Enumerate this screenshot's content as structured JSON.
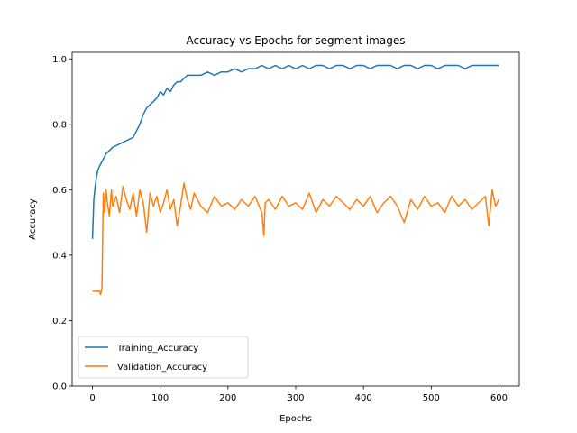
{
  "chart_data": {
    "type": "line",
    "title": "Accuracy vs Epochs for segment images",
    "xlabel": "Epochs",
    "ylabel": "Accuracy",
    "xlim": [
      -30,
      630
    ],
    "ylim": [
      0.0,
      1.02
    ],
    "x_ticks": [
      0,
      100,
      200,
      300,
      400,
      500,
      600
    ],
    "y_ticks": [
      0.0,
      0.2,
      0.4,
      0.6,
      0.8,
      1.0
    ],
    "x_tick_labels": [
      "0",
      "100",
      "200",
      "300",
      "400",
      "500",
      "600"
    ],
    "y_tick_labels": [
      "0.0",
      "0.2",
      "0.4",
      "0.6",
      "0.8",
      "1.0"
    ],
    "grid": false,
    "legend_position": "lower-left",
    "series": [
      {
        "name": "Training_Accuracy",
        "color": "#1f77b4",
        "x": [
          0,
          2,
          4,
          6,
          8,
          10,
          15,
          20,
          25,
          30,
          40,
          50,
          60,
          65,
          70,
          75,
          80,
          85,
          90,
          95,
          100,
          105,
          110,
          115,
          120,
          125,
          130,
          135,
          140,
          150,
          160,
          170,
          180,
          190,
          200,
          210,
          220,
          230,
          240,
          250,
          260,
          270,
          280,
          290,
          300,
          310,
          320,
          330,
          340,
          350,
          360,
          370,
          380,
          390,
          400,
          410,
          420,
          430,
          440,
          450,
          460,
          470,
          480,
          490,
          500,
          510,
          520,
          530,
          540,
          550,
          560,
          570,
          580,
          590,
          600
        ],
        "y": [
          0.45,
          0.57,
          0.61,
          0.64,
          0.66,
          0.67,
          0.69,
          0.71,
          0.72,
          0.73,
          0.74,
          0.75,
          0.76,
          0.78,
          0.8,
          0.83,
          0.85,
          0.86,
          0.87,
          0.88,
          0.9,
          0.89,
          0.91,
          0.9,
          0.92,
          0.93,
          0.93,
          0.94,
          0.95,
          0.95,
          0.95,
          0.96,
          0.95,
          0.96,
          0.96,
          0.97,
          0.96,
          0.97,
          0.97,
          0.98,
          0.97,
          0.98,
          0.97,
          0.98,
          0.97,
          0.98,
          0.97,
          0.98,
          0.98,
          0.97,
          0.98,
          0.98,
          0.97,
          0.98,
          0.98,
          0.97,
          0.98,
          0.98,
          0.98,
          0.97,
          0.98,
          0.98,
          0.97,
          0.98,
          0.98,
          0.97,
          0.98,
          0.98,
          0.98,
          0.97,
          0.98,
          0.98,
          0.98,
          0.98,
          0.98
        ]
      },
      {
        "name": "Validation_Accuracy",
        "color": "#ff7f0e",
        "x": [
          0,
          5,
          10,
          12,
          14,
          16,
          18,
          20,
          22,
          25,
          28,
          30,
          35,
          40,
          45,
          50,
          55,
          60,
          65,
          70,
          75,
          80,
          85,
          90,
          95,
          100,
          105,
          110,
          115,
          120,
          125,
          130,
          135,
          140,
          145,
          150,
          160,
          170,
          180,
          190,
          200,
          210,
          220,
          230,
          240,
          250,
          253,
          255,
          260,
          270,
          280,
          290,
          300,
          310,
          320,
          330,
          340,
          350,
          360,
          370,
          380,
          390,
          400,
          410,
          420,
          430,
          440,
          450,
          460,
          470,
          480,
          490,
          500,
          510,
          520,
          530,
          540,
          550,
          560,
          570,
          580,
          585,
          590,
          595,
          600
        ],
        "y": [
          0.29,
          0.29,
          0.29,
          0.28,
          0.3,
          0.59,
          0.53,
          0.6,
          0.56,
          0.52,
          0.6,
          0.55,
          0.58,
          0.53,
          0.61,
          0.57,
          0.54,
          0.59,
          0.52,
          0.6,
          0.56,
          0.47,
          0.59,
          0.55,
          0.58,
          0.53,
          0.56,
          0.6,
          0.54,
          0.57,
          0.49,
          0.55,
          0.62,
          0.57,
          0.54,
          0.59,
          0.55,
          0.53,
          0.58,
          0.55,
          0.56,
          0.54,
          0.57,
          0.55,
          0.58,
          0.53,
          0.46,
          0.56,
          0.57,
          0.54,
          0.58,
          0.55,
          0.56,
          0.54,
          0.59,
          0.53,
          0.57,
          0.55,
          0.58,
          0.56,
          0.54,
          0.57,
          0.55,
          0.58,
          0.53,
          0.56,
          0.58,
          0.55,
          0.5,
          0.57,
          0.54,
          0.58,
          0.55,
          0.56,
          0.53,
          0.58,
          0.55,
          0.57,
          0.54,
          0.56,
          0.58,
          0.49,
          0.6,
          0.55,
          0.57
        ]
      }
    ]
  }
}
